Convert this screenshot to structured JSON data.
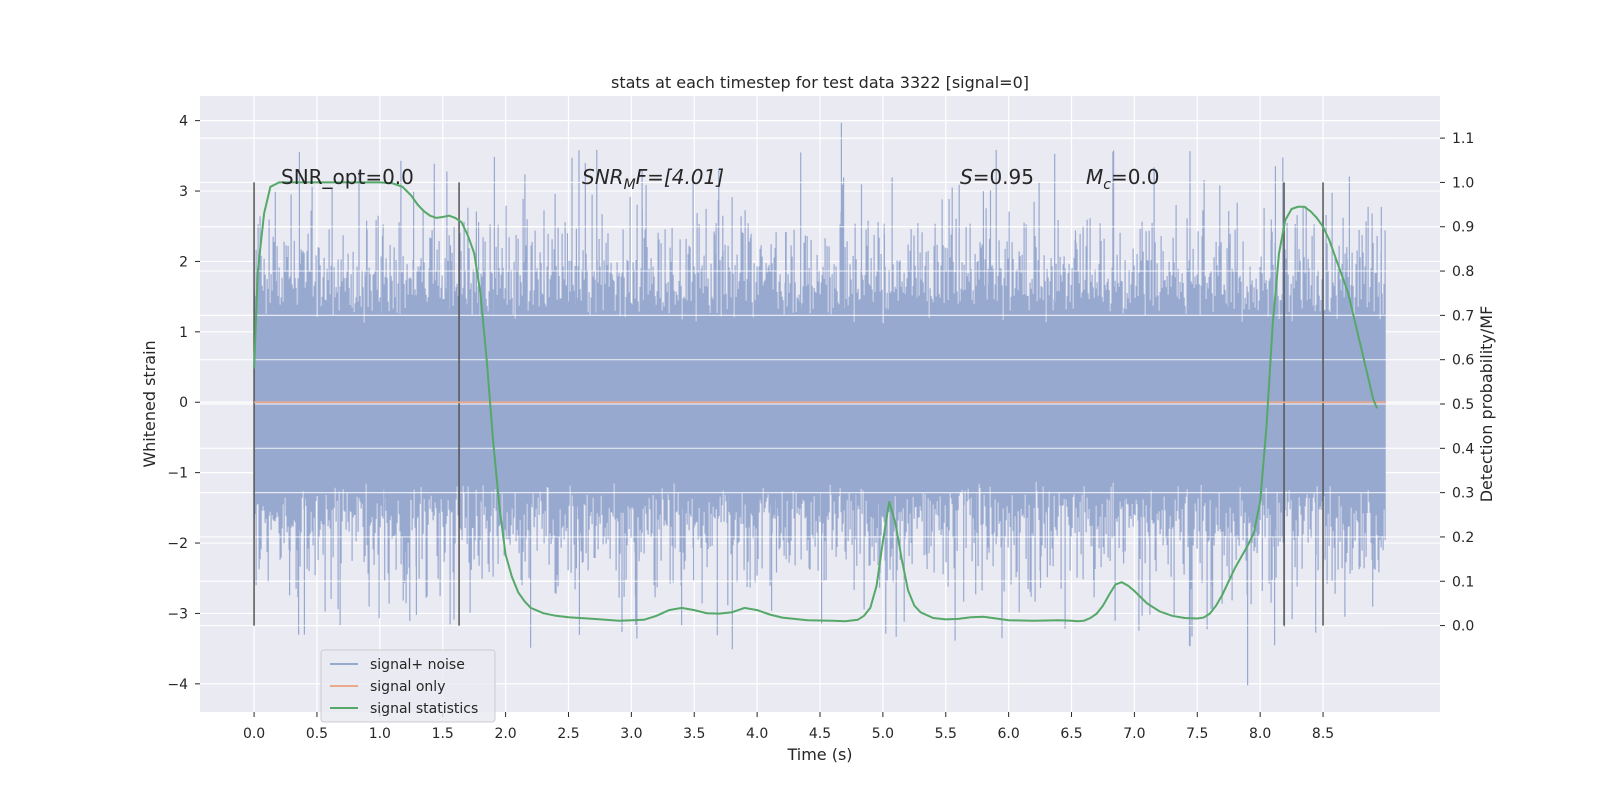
{
  "chart_data": {
    "type": "line",
    "title": "stats at each timestep for test data 3322 [signal=0]",
    "xlabel": "Time (s)",
    "ylabel": "Whitened strain",
    "y2label": "Detection probability/MF",
    "xlim": [
      -0.43,
      9.43
    ],
    "ylim": [
      -4.4,
      4.35
    ],
    "y2lim": [
      -0.195,
      1.195
    ],
    "xticks": [
      "0.0",
      "0.5",
      "1.0",
      "1.5",
      "2.0",
      "2.5",
      "3.0",
      "3.5",
      "4.0",
      "4.5",
      "5.0",
      "5.5",
      "6.0",
      "6.5",
      "7.0",
      "7.5",
      "8.0",
      "8.5"
    ],
    "yticks": [
      "4",
      "3",
      "2",
      "1",
      "0",
      "−1",
      "−2",
      "−3",
      "−4"
    ],
    "y2ticks": [
      "1.1",
      "1.0",
      "0.9",
      "0.8",
      "0.7",
      "0.6",
      "0.5",
      "0.4",
      "0.3",
      "0.2",
      "0.1",
      "0.0"
    ],
    "grid": true,
    "legend_position": "lower-left",
    "annotations": {
      "snr_opt": "SNR_opt=0.0",
      "snr_mf_italic": "SNR",
      "snr_mf_sub": "M",
      "snr_mf_rest": "F=[4.01]",
      "s_italic": "S",
      "s_rest": "=0.95",
      "mc_italic": "M",
      "mc_sub": "c",
      "mc_rest": "=0.0"
    },
    "vlines_x": [
      0.0,
      1.63,
      8.19,
      8.5
    ],
    "series": [
      {
        "name": "signal+ noise",
        "color": "#98a9d0",
        "axis": "left",
        "t_range": [
          0.0,
          9.0
        ],
        "envelope_typical": 2.0,
        "peak_max": 3.97,
        "peak_min": -4.02
      },
      {
        "name": "signal only",
        "color": "#e8a98c",
        "axis": "left",
        "x": [
          0.0,
          9.0
        ],
        "y": [
          0.0,
          0.0
        ]
      },
      {
        "name": "signal statistics",
        "color": "#55a868",
        "axis": "right",
        "x": [
          0.0,
          0.03,
          0.08,
          0.13,
          0.2,
          0.3,
          0.5,
          0.8,
          1.0,
          1.1,
          1.18,
          1.25,
          1.3,
          1.35,
          1.4,
          1.45,
          1.5,
          1.55,
          1.6,
          1.65,
          1.7,
          1.75,
          1.8,
          1.85,
          1.9,
          1.95,
          2.0,
          2.05,
          2.1,
          2.15,
          2.2,
          2.3,
          2.4,
          2.5,
          2.7,
          2.9,
          3.1,
          3.2,
          3.3,
          3.4,
          3.5,
          3.6,
          3.7,
          3.8,
          3.9,
          4.0,
          4.1,
          4.2,
          4.4,
          4.6,
          4.7,
          4.8,
          4.85,
          4.9,
          4.95,
          5.0,
          5.05,
          5.1,
          5.15,
          5.2,
          5.25,
          5.3,
          5.4,
          5.5,
          5.6,
          5.7,
          5.8,
          5.9,
          6.0,
          6.2,
          6.4,
          6.5,
          6.55,
          6.6,
          6.65,
          6.7,
          6.75,
          6.8,
          6.85,
          6.9,
          6.95,
          7.0,
          7.1,
          7.2,
          7.3,
          7.4,
          7.5,
          7.55,
          7.6,
          7.65,
          7.7,
          7.75,
          7.8,
          7.85,
          7.9,
          7.95,
          8.0,
          8.05,
          8.1,
          8.15,
          8.2,
          8.25,
          8.3,
          8.35,
          8.4,
          8.45,
          8.5,
          8.55,
          8.6,
          8.65,
          8.7,
          8.75,
          8.8,
          8.85,
          8.9,
          8.93
        ],
        "y": [
          0.58,
          0.8,
          0.93,
          0.99,
          1.0,
          1.0,
          1.0,
          1.0,
          1.0,
          0.998,
          0.99,
          0.97,
          0.95,
          0.935,
          0.925,
          0.92,
          0.922,
          0.925,
          0.92,
          0.91,
          0.88,
          0.84,
          0.75,
          0.6,
          0.42,
          0.27,
          0.16,
          0.11,
          0.075,
          0.055,
          0.04,
          0.028,
          0.022,
          0.019,
          0.015,
          0.011,
          0.013,
          0.022,
          0.035,
          0.04,
          0.035,
          0.028,
          0.027,
          0.03,
          0.04,
          0.035,
          0.025,
          0.018,
          0.012,
          0.011,
          0.01,
          0.013,
          0.022,
          0.04,
          0.09,
          0.19,
          0.28,
          0.23,
          0.15,
          0.08,
          0.045,
          0.03,
          0.017,
          0.014,
          0.015,
          0.019,
          0.02,
          0.016,
          0.012,
          0.011,
          0.012,
          0.011,
          0.01,
          0.011,
          0.017,
          0.027,
          0.045,
          0.07,
          0.093,
          0.098,
          0.09,
          0.078,
          0.05,
          0.032,
          0.022,
          0.017,
          0.016,
          0.018,
          0.027,
          0.045,
          0.07,
          0.1,
          0.13,
          0.155,
          0.18,
          0.21,
          0.28,
          0.45,
          0.68,
          0.84,
          0.915,
          0.94,
          0.945,
          0.945,
          0.935,
          0.92,
          0.9,
          0.87,
          0.83,
          0.79,
          0.75,
          0.69,
          0.63,
          0.57,
          0.51,
          0.49
        ]
      }
    ]
  }
}
